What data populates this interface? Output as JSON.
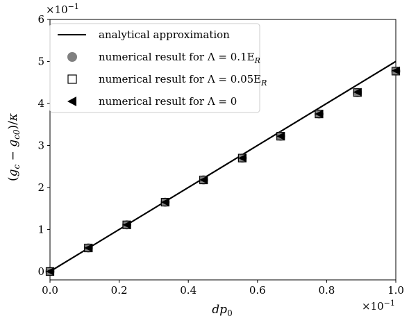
{
  "chart_data": {
    "type": "scatter",
    "title": "",
    "xlabel": "dp",
    "xlabel_sub": "0",
    "ylabel": "(g_c − g_c0)/κ",
    "x_multiplier": "×10",
    "x_multiplier_exp": "−1",
    "y_multiplier": "×10",
    "y_multiplier_exp": "−1",
    "xlim": [
      0,
      1.0
    ],
    "ylim": [
      -0.2,
      6
    ],
    "x_ticks": [
      0.0,
      0.2,
      0.4,
      0.6,
      0.8,
      1.0
    ],
    "x_tick_labels": [
      "0.0",
      "0.2",
      "0.4",
      "0.6",
      "0.8",
      "1.0"
    ],
    "y_ticks": [
      0,
      1,
      2,
      3,
      4,
      5,
      6
    ],
    "y_tick_labels": [
      "0",
      "1",
      "2",
      "3",
      "4",
      "5",
      "6"
    ],
    "grid": false,
    "legend_position": "top-left",
    "line": {
      "name": "analytical approximation",
      "x": [
        0.0,
        1.0
      ],
      "y": [
        0.0,
        5.0
      ],
      "color": "#000000"
    },
    "series": [
      {
        "name": "numerical result for Λ = 0.1E",
        "name_sub": "R",
        "marker": "circle",
        "color": "#808080",
        "x": [
          0.0,
          0.111,
          0.222,
          0.333,
          0.444,
          0.556,
          0.667,
          0.778,
          0.889,
          1.0
        ],
        "y": [
          0.0,
          0.56,
          1.11,
          1.65,
          2.18,
          2.7,
          3.22,
          3.75,
          4.26,
          4.77
        ]
      },
      {
        "name": "numerical result for Λ = 0.05E",
        "name_sub": "R",
        "marker": "square",
        "color": "#000000",
        "x": [
          0.0,
          0.111,
          0.222,
          0.333,
          0.444,
          0.556,
          0.667,
          0.778,
          0.889,
          1.0
        ],
        "y": [
          0.0,
          0.56,
          1.11,
          1.65,
          2.18,
          2.7,
          3.22,
          3.75,
          4.26,
          4.77
        ]
      },
      {
        "name": "numerical result for Λ = 0",
        "name_sub": "",
        "marker": "triangle-left",
        "color": "#000000",
        "x": [
          0.0,
          0.111,
          0.222,
          0.333,
          0.444,
          0.556,
          0.667,
          0.778,
          0.889,
          1.0
        ],
        "y": [
          0.0,
          0.56,
          1.11,
          1.65,
          2.18,
          2.7,
          3.22,
          3.75,
          4.27,
          4.78
        ]
      }
    ]
  }
}
